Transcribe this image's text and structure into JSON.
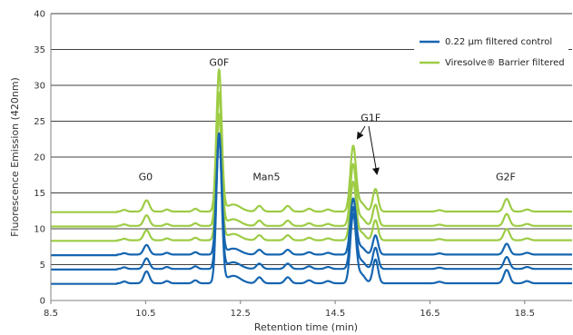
{
  "chart_data": {
    "type": "line",
    "xlabel": "Retention time (min)",
    "ylabel": "Fluorescence  Emission (420nm)",
    "xlim": [
      8.5,
      19.5
    ],
    "ylim": [
      0,
      40
    ],
    "x_ticks": [
      "8.5",
      "10.5",
      "12.5",
      "14.5",
      "16.5",
      "18.5"
    ],
    "y_ticks": [
      "0",
      "5",
      "10",
      "15",
      "20",
      "25",
      "30",
      "35",
      "40"
    ],
    "grid": "horizontal",
    "legend_position": "top-right",
    "legend": [
      {
        "name": "0.22 µm filtered control",
        "color": "#1565b0"
      },
      {
        "name": "Viresolve® Barrier filtered",
        "color": "#9dcc45"
      }
    ],
    "annotations": [
      {
        "text": "G0",
        "x": 10.5,
        "y": 16.8
      },
      {
        "text": "G0F",
        "x": 12.05,
        "y": 32.7
      },
      {
        "text": "Man5",
        "x": 13.05,
        "y": 16.8
      },
      {
        "text": "G1F",
        "x": 15.25,
        "y": 25.0
      },
      {
        "text": "G2F",
        "x": 18.1,
        "y": 16.8
      }
    ],
    "peaks": [
      {
        "name": "",
        "x": 10.05,
        "width": 0.05,
        "rel": 0.012
      },
      {
        "name": "G0",
        "x": 10.52,
        "width": 0.06,
        "rel": 0.08
      },
      {
        "name": "",
        "x": 10.95,
        "width": 0.05,
        "rel": 0.015
      },
      {
        "name": "",
        "x": 11.55,
        "width": 0.05,
        "rel": 0.02
      },
      {
        "name": "G0F",
        "x": 12.05,
        "width": 0.055,
        "rel": 1.0
      },
      {
        "name": "",
        "x": 12.35,
        "width": 0.15,
        "rel": 0.05
      },
      {
        "name": "Man5",
        "x": 12.9,
        "width": 0.06,
        "rel": 0.04
      },
      {
        "name": "",
        "x": 13.5,
        "width": 0.06,
        "rel": 0.04
      },
      {
        "name": "",
        "x": 13.95,
        "width": 0.06,
        "rel": 0.02
      },
      {
        "name": "",
        "x": 14.35,
        "width": 0.06,
        "rel": 0.015
      },
      {
        "name": "G1F",
        "x": 14.88,
        "width": 0.06,
        "rel": 0.46
      },
      {
        "name": "",
        "x": 15.05,
        "width": 0.08,
        "rel": 0.06
      },
      {
        "name": "G1F",
        "x": 15.35,
        "width": 0.055,
        "rel": 0.16
      },
      {
        "name": "",
        "x": 16.7,
        "width": 0.06,
        "rel": 0.01
      },
      {
        "name": "G2F",
        "x": 18.12,
        "width": 0.06,
        "rel": 0.09
      },
      {
        "name": "",
        "x": 18.55,
        "width": 0.06,
        "rel": 0.015
      }
    ],
    "series": [
      {
        "name": "0.22 µm filtered control",
        "color": "#1565b0",
        "baseline": 2.4,
        "scale": 20.8
      },
      {
        "name": "0.22 µm filtered control",
        "color": "#1565b0",
        "baseline": 4.4,
        "scale": 18.5
      },
      {
        "name": "0.22 µm filtered control",
        "color": "#1565b0",
        "baseline": 6.4,
        "scale": 16.8
      },
      {
        "name": "Viresolve® Barrier filtered",
        "color": "#9dcc45",
        "baseline": 8.4,
        "scale": 17.5
      },
      {
        "name": "Viresolve® Barrier filtered",
        "color": "#9dcc45",
        "baseline": 10.4,
        "scale": 18.5
      },
      {
        "name": "Viresolve® Barrier filtered",
        "color": "#9dcc45",
        "baseline": 12.4,
        "scale": 19.7
      }
    ]
  }
}
